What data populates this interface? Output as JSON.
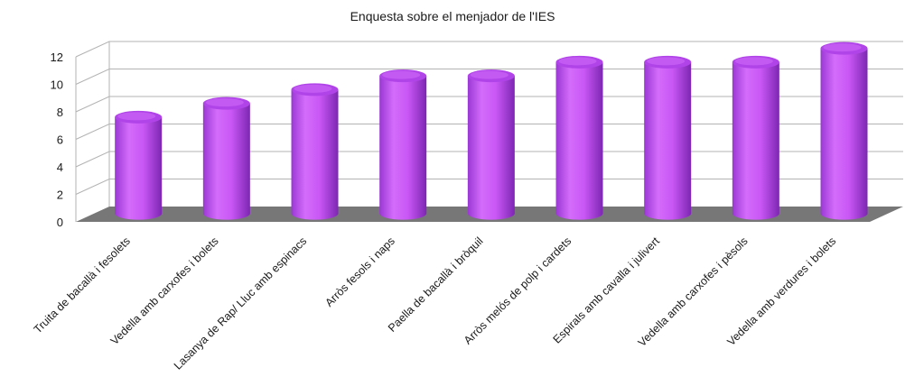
{
  "chart_data": {
    "type": "bar",
    "title": "Enquesta sobre el menjador de l'IES",
    "categories": [
      "Truita de bacallà i fesolets",
      "Vedella amb carxofes i bolets",
      "Lasanya de Rap/ Lluc amb espinacs",
      "Arròs fesols i naps",
      "Paella de bacallà i bròquil",
      "Arròs melós de polp i cardets",
      "Espirals amb cavalla i julivert",
      "Vedella amb carxofes i pèsols",
      "Vedella amb verdures i bolets"
    ],
    "values": [
      7,
      8,
      9,
      10,
      10,
      11,
      11,
      11,
      12
    ],
    "ylim": [
      0,
      12
    ],
    "yticks": [
      "0",
      "2",
      "4",
      "6",
      "8",
      "10",
      "12"
    ],
    "xlabel": "",
    "ylabel": "",
    "grid": true,
    "style": "3d-cylinder",
    "colors": {
      "bar": "#cc5cf5",
      "bar_dark": "#8a2fc0",
      "bar_light": "#ea9cff",
      "floor": "#777777",
      "grid": "#b3b3b3"
    }
  }
}
